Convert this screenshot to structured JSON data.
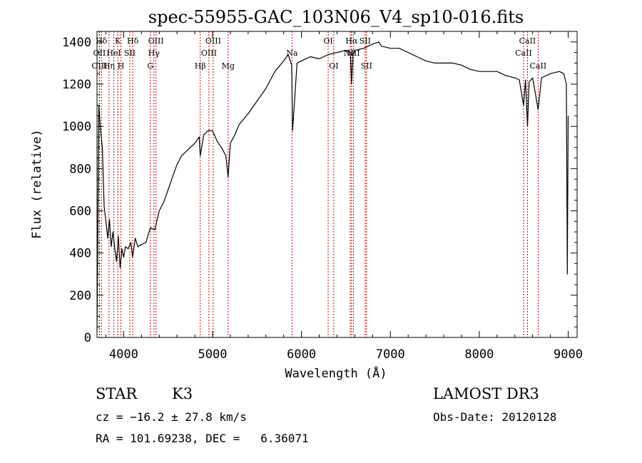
{
  "chart_data": {
    "type": "line",
    "title": "spec-55955-GAC_103N06_V4_sp10-016.fits",
    "xlabel": "Wavelength (Å)",
    "ylabel": "Flux (relative)",
    "xlim": [
      3700,
      9100
    ],
    "ylim": [
      0,
      1450
    ],
    "x_ticks": [
      4000,
      5000,
      6000,
      7000,
      8000,
      9000
    ],
    "y_ticks": [
      0,
      200,
      400,
      600,
      800,
      1000,
      1200,
      1400
    ],
    "grid": false,
    "series": [
      {
        "x": [
          3700,
          3720,
          3740,
          3760,
          3780,
          3800,
          3820,
          3840,
          3860,
          3880,
          3900,
          3920,
          3940,
          3960,
          3980,
          4000,
          4020,
          4050,
          4080,
          4100,
          4130,
          4160,
          4200,
          4250,
          4300,
          4350,
          4400,
          4450,
          4500,
          4550,
          4600,
          4650,
          4700,
          4750,
          4800,
          4850,
          4861,
          4900,
          4950,
          5000,
          5050,
          5100,
          5150,
          5175,
          5200,
          5250,
          5300,
          5400,
          5500,
          5600,
          5700,
          5800,
          5850,
          5890,
          5900,
          5950,
          6000,
          6100,
          6200,
          6300,
          6400,
          6500,
          6550,
          6563,
          6580,
          6600,
          6700,
          6800,
          6870,
          6900,
          7000,
          7100,
          7200,
          7300,
          7400,
          7500,
          7600,
          7700,
          7800,
          7900,
          8000,
          8100,
          8200,
          8300,
          8400,
          8450,
          8498,
          8520,
          8542,
          8560,
          8600,
          8662,
          8700,
          8800,
          8900,
          8950,
          8980,
          8990,
          9000
        ],
        "y": [
          30,
          1100,
          980,
          900,
          620,
          550,
          470,
          560,
          430,
          500,
          420,
          360,
          480,
          330,
          420,
          380,
          430,
          420,
          450,
          380,
          470,
          430,
          440,
          450,
          520,
          510,
          600,
          640,
          700,
          760,
          820,
          860,
          880,
          900,
          920,
          950,
          860,
          960,
          980,
          980,
          930,
          900,
          860,
          760,
          920,
          960,
          1010,
          1060,
          1120,
          1180,
          1260,
          1310,
          1340,
          1290,
          980,
          1300,
          1310,
          1330,
          1320,
          1340,
          1350,
          1360,
          1350,
          1200,
          1340,
          1360,
          1370,
          1390,
          1400,
          1380,
          1370,
          1370,
          1350,
          1330,
          1310,
          1300,
          1300,
          1300,
          1290,
          1270,
          1260,
          1260,
          1260,
          1240,
          1230,
          1220,
          1100,
          1220,
          1000,
          1210,
          1230,
          1080,
          1230,
          1250,
          1260,
          1250,
          1200,
          300,
          1050
        ]
      }
    ],
    "lines": [
      {
        "label": "Hδ",
        "wl": 3750,
        "row": 0
      },
      {
        "label": "K",
        "wl": 3934,
        "row": 0
      },
      {
        "label": "Hδ",
        "wl": 4102,
        "row": 0
      },
      {
        "label": "OIII",
        "wl": 4363,
        "row": 0
      },
      {
        "label": "OIII",
        "wl": 5007,
        "row": 0
      },
      {
        "label": "OI",
        "wl": 6300,
        "row": 0
      },
      {
        "label": "Hα",
        "wl": 6563,
        "row": 0
      },
      {
        "label": "SII",
        "wl": 6716,
        "row": 0
      },
      {
        "label": "CaII",
        "wl": 8542,
        "row": 0
      },
      {
        "label": "OII",
        "wl": 3727,
        "row": 1
      },
      {
        "label": "HeI",
        "wl": 3889,
        "row": 1
      },
      {
        "label": "SII",
        "wl": 4069,
        "row": 1
      },
      {
        "label": "Hγ",
        "wl": 4340,
        "row": 1
      },
      {
        "label": "OIII",
        "wl": 4959,
        "row": 1
      },
      {
        "label": "Na",
        "wl": 5893,
        "row": 1
      },
      {
        "label": "NII",
        "wl": 6548,
        "row": 1
      },
      {
        "label": "NII",
        "wl": 6584,
        "row": 1
      },
      {
        "label": "CaII",
        "wl": 8498,
        "row": 1
      },
      {
        "label": "OIII",
        "wl": 3727,
        "row": 2
      },
      {
        "label": "Hη",
        "wl": 3835,
        "row": 2
      },
      {
        "label": "H",
        "wl": 3969,
        "row": 2
      },
      {
        "label": "G",
        "wl": 4300,
        "row": 2
      },
      {
        "label": "Hβ",
        "wl": 4861,
        "row": 2
      },
      {
        "label": "Mg",
        "wl": 5175,
        "row": 2
      },
      {
        "label": "OI",
        "wl": 6363,
        "row": 2
      },
      {
        "label": "SII",
        "wl": 6731,
        "row": 2
      },
      {
        "label": "CaII",
        "wl": 8662,
        "row": 2
      }
    ],
    "colors": {
      "spectrum": "#000000",
      "lines": "#cc0000"
    }
  },
  "info": {
    "object_class": "STAR",
    "subclass": "K3",
    "survey": "LAMOST DR3",
    "cz": "cz = −16.2 ± 27.8 km/s",
    "obs_date": "Obs-Date: 20120128",
    "coords": "RA = 101.69238, DEC =   6.36071"
  }
}
